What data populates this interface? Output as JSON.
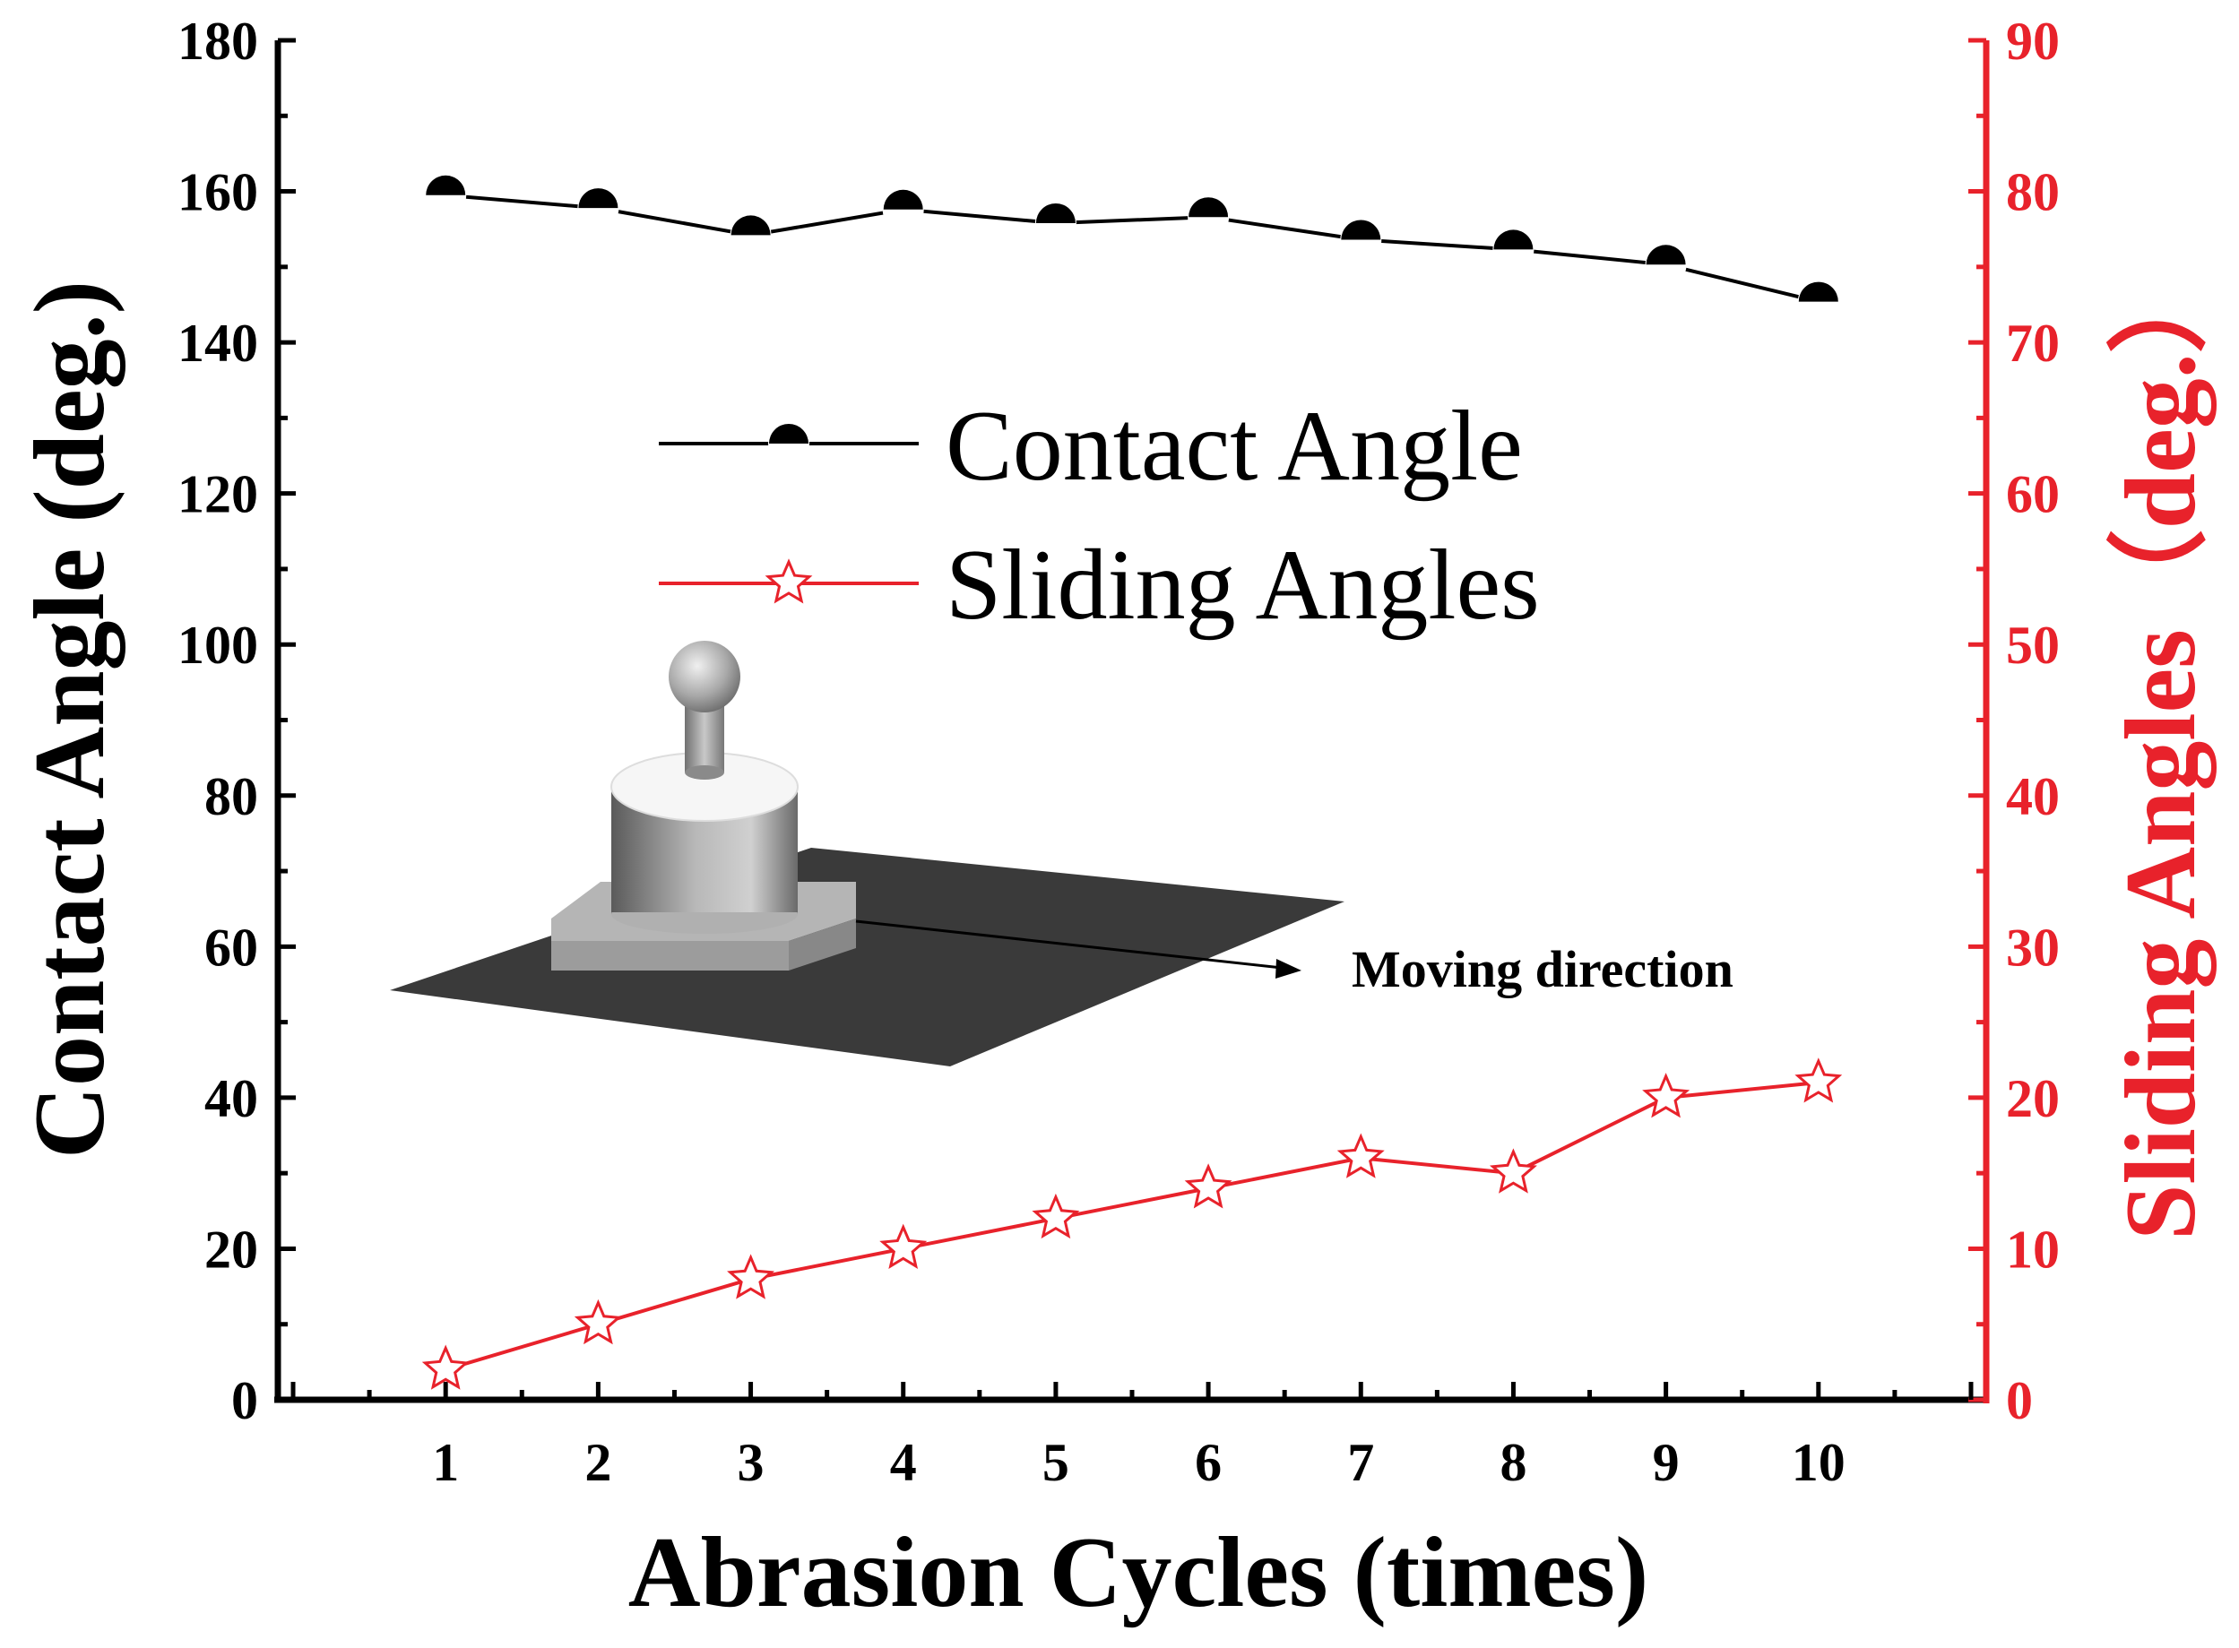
{
  "chart_data": {
    "type": "line",
    "xlabel": "Abrasion Cycles (times)",
    "ylabel_left": "Contact Angle (deg.)",
    "ylabel_right": "Sliding Angles（deg.）",
    "x": [
      1,
      2,
      3,
      4,
      5,
      6,
      7,
      8,
      9,
      10
    ],
    "x_ticks": [
      "1",
      "2",
      "3",
      "4",
      "5",
      "6",
      "7",
      "8",
      "9",
      "10"
    ],
    "xlim": [
      -0.1,
      11.1
    ],
    "ylim_left": [
      0,
      180
    ],
    "ylim_right": [
      0,
      90
    ],
    "y_ticks_left": [
      0,
      20,
      40,
      60,
      80,
      100,
      120,
      140,
      160,
      180
    ],
    "y_ticks_right": [
      0,
      10,
      20,
      30,
      40,
      50,
      60,
      70,
      80,
      90
    ],
    "legend_position": "upper-center",
    "grid": false,
    "series": [
      {
        "name": "Contact Angle",
        "axis": "left",
        "color": "#000000",
        "marker": "half-filled-circle",
        "values": [
          159.5,
          157.8,
          154.2,
          157.6,
          155.8,
          156.6,
          153.6,
          152.3,
          150.3,
          145.4
        ]
      },
      {
        "name": "Sliding Angles",
        "axis": "right",
        "color": "#e8222b",
        "marker": "star",
        "values": [
          2,
          5,
          8,
          10,
          12,
          14,
          16,
          15,
          20,
          21
        ]
      }
    ],
    "annotations": [
      {
        "text": "Moving direction"
      }
    ]
  }
}
